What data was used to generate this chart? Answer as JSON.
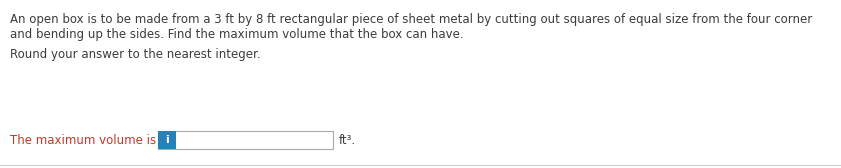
{
  "line1": "An open box is to be made from a 3 ft by 8 ft rectangular piece of sheet metal by cutting out squares of equal size from the four corner",
  "line2": "and bending up the sides. Find the maximum volume that the box can have.",
  "line3": "Round your answer to the nearest integer.",
  "line4_prefix": "The maximum volume is ",
  "line4_suffix": "ft³.",
  "text_color_main": "#3c3c3c",
  "text_color_red": "#c0392b",
  "icon_color": "#2980b9",
  "icon_text_color": "#ffffff",
  "input_border_color": "#aaaaaa",
  "background_color": "#ffffff",
  "font_size_main": 8.5,
  "font_size_answer": 8.5,
  "bottom_line_color": "#cccccc",
  "fig_width": 8.41,
  "fig_height": 1.68,
  "dpi": 100
}
